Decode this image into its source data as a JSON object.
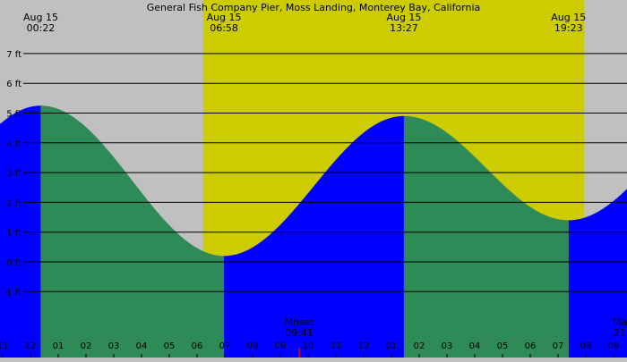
{
  "chart_data": {
    "type": "area",
    "title": "General Fish Company Pier, Moss Landing, Monterey Bay, California",
    "y_unit": "ft",
    "ylim": [
      -2,
      8
    ],
    "y_ticks": [
      "7 ft",
      "6 ft",
      "5 ft",
      "4 ft",
      "3 ft",
      "2 ft",
      "1 ft",
      "0 ft",
      "-1 ft"
    ],
    "y_tick_values": [
      7,
      6,
      5,
      4,
      3,
      2,
      1,
      0,
      -1
    ],
    "x_range_hours": [
      -12.4,
      34.9
    ],
    "hour_labels": [
      "11",
      "12",
      "01",
      "02",
      "03",
      "04",
      "05",
      "06",
      "07",
      "08",
      "09",
      "10",
      "11",
      "12",
      "01",
      "02",
      "03",
      "04",
      "05",
      "06",
      "07",
      "08",
      "09"
    ],
    "hour_label_values": [
      -1,
      0,
      1,
      2,
      3,
      4,
      5,
      6,
      7,
      8,
      9,
      10,
      11,
      12,
      13,
      14,
      15,
      16,
      17,
      18,
      19,
      20,
      21
    ],
    "daylight": {
      "sunrise_hour": 6.22,
      "sunset_hour": 19.95
    },
    "moonset": {
      "label": "Mnset",
      "time": "09:41",
      "hour": 9.68
    },
    "moonrise_partial": {
      "label": "Ma",
      "time": "21"
    },
    "tide_events": [
      {
        "date": "Aug 15",
        "time": "00:22",
        "hour": 0.37,
        "height_ft": 5.25,
        "type": "high"
      },
      {
        "date": "Aug 15",
        "time": "06:58",
        "hour": 6.97,
        "height_ft": 0.2,
        "type": "low"
      },
      {
        "date": "Aug 15",
        "time": "13:27",
        "hour": 13.45,
        "height_ft": 4.9,
        "type": "high"
      },
      {
        "date": "Aug 15",
        "time": "19:23",
        "hour": 19.38,
        "height_ft": 1.4,
        "type": "low"
      }
    ],
    "tide_curve_edges": {
      "start_hour": -1.1,
      "start_ft": 4.3,
      "end_hour": 22.0,
      "end_ft": 2.55
    },
    "colors": {
      "night": "#c0c0c0",
      "day": "#cccc00",
      "rising": "#0000ff",
      "falling": "#2e8b57",
      "moon_marker": "#cc0000"
    }
  }
}
